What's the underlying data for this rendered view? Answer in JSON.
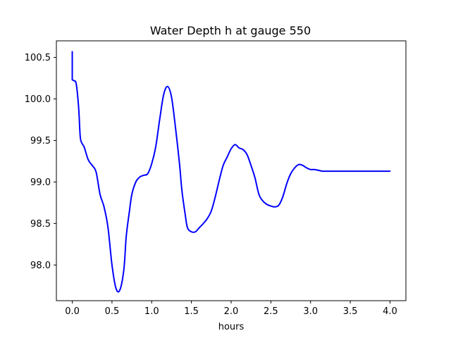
{
  "chart_data": {
    "type": "line",
    "title": "Water Depth h at gauge 550",
    "xlabel": "hours",
    "ylabel": "",
    "xlim": [
      -0.2,
      4.2
    ],
    "ylim": [
      97.57,
      100.7
    ],
    "xticks": [
      0.0,
      0.5,
      1.0,
      1.5,
      2.0,
      2.5,
      3.0,
      3.5,
      4.0
    ],
    "xtick_labels": [
      "0.0",
      "0.5",
      "1.0",
      "1.5",
      "2.0",
      "2.5",
      "3.0",
      "3.5",
      "4.0"
    ],
    "yticks": [
      98.0,
      98.5,
      99.0,
      99.5,
      100.0,
      100.5
    ],
    "ytick_labels": [
      "98.0",
      "98.5",
      "99.0",
      "99.5",
      "100.0",
      "100.5"
    ],
    "grid": false,
    "legend": "none",
    "series": [
      {
        "color": "#0000ff",
        "x": [
          0.0,
          0.0,
          0.02,
          0.05,
          0.08,
          0.1,
          0.12,
          0.15,
          0.2,
          0.25,
          0.3,
          0.35,
          0.4,
          0.45,
          0.5,
          0.55,
          0.6,
          0.65,
          0.68,
          0.72,
          0.75,
          0.8,
          0.85,
          0.9,
          0.95,
          1.0,
          1.05,
          1.1,
          1.15,
          1.2,
          1.25,
          1.3,
          1.35,
          1.38,
          1.42,
          1.45,
          1.5,
          1.55,
          1.6,
          1.65,
          1.7,
          1.75,
          1.8,
          1.85,
          1.9,
          1.95,
          2.0,
          2.05,
          2.1,
          2.15,
          2.2,
          2.25,
          2.3,
          2.35,
          2.4,
          2.45,
          2.5,
          2.55,
          2.6,
          2.65,
          2.7,
          2.75,
          2.8,
          2.85,
          2.9,
          2.95,
          3.0,
          3.05,
          3.1,
          3.15,
          3.2,
          3.25,
          3.3,
          3.35,
          3.4,
          3.45,
          3.5,
          3.55,
          3.6,
          3.65,
          3.7,
          3.75,
          3.8,
          3.85,
          3.9,
          3.95,
          4.0
        ],
        "y": [
          100.57,
          100.23,
          100.22,
          100.18,
          99.9,
          99.55,
          99.47,
          99.42,
          99.27,
          99.2,
          99.12,
          98.85,
          98.7,
          98.45,
          98.0,
          97.72,
          97.7,
          97.95,
          98.35,
          98.65,
          98.85,
          99.0,
          99.06,
          99.08,
          99.1,
          99.22,
          99.42,
          99.75,
          100.05,
          100.15,
          100.02,
          99.65,
          99.22,
          98.9,
          98.62,
          98.45,
          98.4,
          98.4,
          98.45,
          98.5,
          98.56,
          98.65,
          98.82,
          99.02,
          99.2,
          99.3,
          99.4,
          99.45,
          99.41,
          99.39,
          99.33,
          99.2,
          99.05,
          98.85,
          98.77,
          98.73,
          98.71,
          98.7,
          98.72,
          98.82,
          98.98,
          99.1,
          99.17,
          99.21,
          99.2,
          99.17,
          99.15,
          99.15,
          99.14,
          99.13,
          99.13,
          99.13,
          99.13,
          99.13,
          99.13,
          99.13,
          99.13,
          99.13,
          99.13,
          99.13,
          99.13,
          99.13,
          99.13,
          99.13,
          99.13,
          99.13,
          99.13
        ]
      }
    ]
  }
}
